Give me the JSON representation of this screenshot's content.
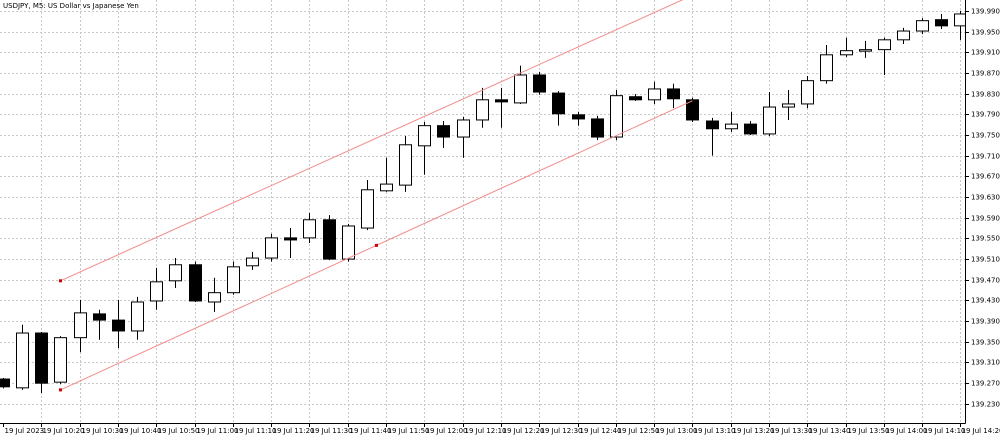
{
  "chart_data": {
    "type": "candlestick",
    "title": "USDJPY, M5: US Dollar vs Japanese Yen",
    "categories": [
      "19 Jul 2023",
      null,
      "19 Jul 10:20",
      null,
      "19 Jul 10:30",
      null,
      "19 Jul 10:40",
      null,
      "19 Jul 10:50",
      null,
      "19 Jul 11:00",
      null,
      "19 Jul 11:10",
      null,
      "19 Jul 11:20",
      null,
      "19 Jul 11:30",
      null,
      "19 Jul 11:40",
      null,
      "19 Jul 11:50",
      null,
      "19 Jul 12:00",
      null,
      "19 Jul 12:10",
      null,
      "19 Jul 12:20",
      null,
      "19 Jul 12:30",
      null,
      "19 Jul 12:40",
      null,
      "19 Jul 12:50",
      null,
      "19 Jul 13:00",
      null,
      "19 Jul 13:10",
      null,
      "19 Jul 13:20",
      null,
      "19 Jul 13:30",
      null,
      "19 Jul 13:40",
      null,
      "19 Jul 13:50",
      null,
      "19 Jul 14:00",
      null,
      "19 Jul 14:10",
      null,
      "19 Jul 14:20"
    ],
    "open": [
      139.278,
      139.261,
      139.367,
      139.272,
      139.358,
      139.404,
      139.392,
      139.371,
      139.429,
      139.468,
      139.499,
      139.427,
      139.445,
      139.497,
      139.512,
      139.551,
      139.551,
      139.586,
      139.51,
      139.57,
      139.642,
      139.653,
      139.729,
      139.768,
      139.746,
      139.779,
      139.818,
      139.812,
      139.866,
      139.831,
      139.789,
      139.781,
      139.746,
      139.824,
      139.818,
      139.839,
      139.818,
      139.777,
      139.762,
      139.771,
      139.752,
      139.804,
      139.81,
      139.855,
      139.905,
      139.913,
      139.915,
      139.934,
      139.951,
      139.973,
      139.961
    ],
    "high": [
      139.28,
      139.383,
      139.369,
      139.361,
      139.431,
      139.412,
      139.431,
      139.437,
      139.493,
      139.512,
      139.505,
      139.474,
      139.505,
      139.524,
      139.559,
      139.57,
      139.599,
      139.595,
      139.578,
      139.663,
      139.706,
      139.748,
      139.775,
      139.777,
      139.785,
      139.841,
      139.841,
      139.884,
      139.872,
      139.835,
      139.795,
      139.787,
      139.837,
      139.829,
      139.853,
      139.849,
      139.822,
      139.783,
      139.795,
      139.777,
      139.833,
      139.837,
      139.864,
      139.924,
      139.938,
      139.932,
      139.938,
      139.957,
      139.976,
      139.984,
      139.99
    ],
    "low": [
      139.26,
      139.257,
      139.251,
      139.268,
      139.33,
      139.354,
      139.338,
      139.354,
      139.412,
      139.454,
      139.427,
      139.408,
      139.441,
      139.489,
      139.505,
      139.512,
      139.541,
      139.508,
      139.505,
      139.566,
      139.64,
      139.64,
      139.673,
      139.725,
      139.706,
      139.764,
      139.764,
      139.81,
      139.828,
      139.768,
      139.768,
      139.74,
      139.74,
      139.816,
      139.81,
      139.802,
      139.775,
      139.71,
      139.756,
      139.75,
      139.748,
      139.779,
      139.802,
      139.849,
      139.901,
      139.899,
      139.866,
      139.926,
      139.945,
      139.955,
      139.934
    ],
    "close": [
      139.263,
      139.367,
      139.27,
      139.358,
      139.406,
      139.392,
      139.371,
      139.427,
      139.466,
      139.499,
      139.429,
      139.445,
      139.495,
      139.512,
      139.551,
      139.547,
      139.586,
      139.51,
      139.574,
      139.644,
      139.655,
      139.731,
      139.768,
      139.746,
      139.779,
      139.818,
      139.814,
      139.866,
      139.833,
      139.791,
      139.781,
      139.746,
      139.826,
      139.818,
      139.839,
      139.82,
      139.779,
      139.762,
      139.771,
      139.752,
      139.804,
      139.81,
      139.855,
      139.905,
      139.913,
      139.915,
      139.934,
      139.951,
      139.971,
      139.961,
      139.984
    ],
    "ylim": [
      139.193,
      140.011
    ],
    "yticks": [
      {
        "value": 139.23,
        "label": "139.230"
      },
      {
        "value": 139.27,
        "label": "139.270"
      },
      {
        "value": 139.31,
        "label": "139.310"
      },
      {
        "value": 139.35,
        "label": "139.350"
      },
      {
        "value": 139.39,
        "label": "139.390"
      },
      {
        "value": 139.43,
        "label": "139.430"
      },
      {
        "value": 139.47,
        "label": "139.470"
      },
      {
        "value": 139.51,
        "label": "139.510"
      },
      {
        "value": 139.55,
        "label": "139.550"
      },
      {
        "value": 139.59,
        "label": "139.590"
      },
      {
        "value": 139.63,
        "label": "139.630"
      },
      {
        "value": 139.67,
        "label": "139.670"
      },
      {
        "value": 139.71,
        "label": "139.710"
      },
      {
        "value": 139.75,
        "label": "139.750"
      },
      {
        "value": 139.79,
        "label": "139.790"
      },
      {
        "value": 139.83,
        "label": "139.830"
      },
      {
        "value": 139.87,
        "label": "139.870"
      },
      {
        "value": 139.91,
        "label": "139.910"
      },
      {
        "value": 139.95,
        "label": "139.950"
      },
      {
        "value": 139.99,
        "label": "139.990"
      }
    ],
    "grid": true,
    "bull_color": "#ffffff",
    "bear_color": "#000000",
    "channel": {
      "color": "#f28b8b",
      "anchor_color": "#cc0000",
      "start": 3,
      "end": 36,
      "upper": [
        139.468,
        140.02
      ],
      "lower": [
        139.257,
        139.816
      ]
    }
  }
}
